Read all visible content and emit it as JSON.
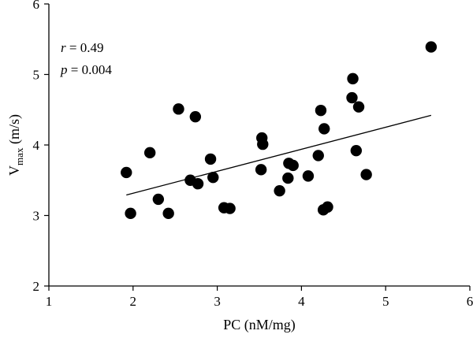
{
  "chart_data": {
    "type": "scatter",
    "xlabel": "PC (nM/mg)",
    "ylabel": "V",
    "ylabel_subscript": "max",
    "ylabel_unit": " (m/s)",
    "xlim": [
      1,
      6
    ],
    "ylim": [
      2,
      6
    ],
    "xticks": [
      "1",
      "2",
      "3",
      "4",
      "5",
      "6"
    ],
    "yticks": [
      "2",
      "3",
      "4",
      "5",
      "6"
    ],
    "grid": false,
    "annotations": {
      "r_symbol": "r",
      "r_value": " = 0.49",
      "p_symbol": "p",
      "p_value": " = 0.004"
    },
    "trendline": {
      "x": [
        1.92,
        5.54
      ],
      "y": [
        3.29,
        4.42
      ]
    },
    "points": [
      {
        "x": 1.92,
        "y": 3.61
      },
      {
        "x": 1.97,
        "y": 3.03
      },
      {
        "x": 2.2,
        "y": 3.89
      },
      {
        "x": 2.3,
        "y": 3.23
      },
      {
        "x": 2.42,
        "y": 3.03
      },
      {
        "x": 2.54,
        "y": 4.51
      },
      {
        "x": 2.68,
        "y": 3.5
      },
      {
        "x": 2.74,
        "y": 4.4
      },
      {
        "x": 2.77,
        "y": 3.45
      },
      {
        "x": 2.92,
        "y": 3.8
      },
      {
        "x": 2.95,
        "y": 3.54
      },
      {
        "x": 3.08,
        "y": 3.11
      },
      {
        "x": 3.15,
        "y": 3.1
      },
      {
        "x": 3.52,
        "y": 3.65
      },
      {
        "x": 3.53,
        "y": 4.1
      },
      {
        "x": 3.54,
        "y": 4.01
      },
      {
        "x": 3.74,
        "y": 3.35
      },
      {
        "x": 3.84,
        "y": 3.53
      },
      {
        "x": 3.85,
        "y": 3.74
      },
      {
        "x": 3.9,
        "y": 3.71
      },
      {
        "x": 4.08,
        "y": 3.56
      },
      {
        "x": 4.2,
        "y": 3.85
      },
      {
        "x": 4.23,
        "y": 4.49
      },
      {
        "x": 4.26,
        "y": 3.08
      },
      {
        "x": 4.27,
        "y": 4.23
      },
      {
        "x": 4.31,
        "y": 3.12
      },
      {
        "x": 4.6,
        "y": 4.67
      },
      {
        "x": 4.61,
        "y": 4.94
      },
      {
        "x": 4.65,
        "y": 3.92
      },
      {
        "x": 4.68,
        "y": 4.54
      },
      {
        "x": 4.77,
        "y": 3.58
      },
      {
        "x": 5.54,
        "y": 5.39
      }
    ]
  }
}
